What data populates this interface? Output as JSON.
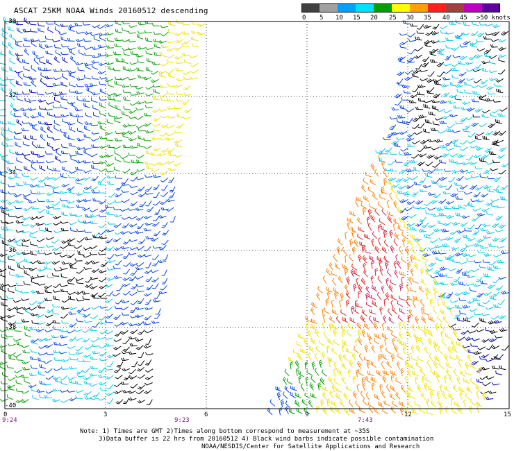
{
  "title": "ASCAT 25KM NOAA Winds 20160512 descending",
  "colorbar": {
    "labels": [
      "0",
      "5",
      "10",
      "15",
      "20",
      "25",
      "30",
      "35",
      "40",
      "45",
      ">50 knots"
    ],
    "colors": [
      "#404040",
      "#a0a0a0",
      "#00a0ff",
      "#00e0ff",
      "#00a000",
      "#ffff00",
      "#ffa000",
      "#ff2020",
      "#a04040",
      "#c000c0",
      "#6000a0"
    ]
  },
  "latitude_labels": [
    "-30",
    "-32",
    "-34",
    "-36",
    "-38",
    "-40"
  ],
  "longitude_labels": [
    "0",
    "3",
    "6",
    "9",
    "12",
    "15"
  ],
  "time_labels": [
    "9:24",
    "9:23",
    "7:43"
  ],
  "notes": [
    "Note: 1) Times are GMT 2)Times along bottom correspond to measurement at ~35S",
    "3)Data buffer is 22 hrs from 20160512 4) Black wind barbs indicate possible contamination",
    "NOAA/NESDIS/Center for Satellite Applications and Research"
  ],
  "barb_colors": {
    "black": "#000000",
    "cyan": "#00c8e8",
    "blue": "#0040e0",
    "darkblue": "#0000b0",
    "green": "#00a000",
    "yellow": "#f0e000",
    "orange": "#ff8000",
    "red": "#e02020",
    "crimson": "#c02060"
  }
}
